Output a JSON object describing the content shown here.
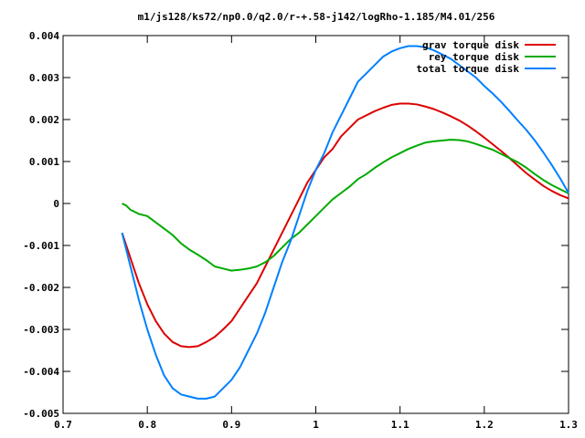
{
  "chart_data": {
    "type": "line",
    "title": "m1/js128/ks72/np0.0/q2.0/r-+.58-j142/logRho-1.185/M4.01/256",
    "xlim": [
      0.7,
      1.3
    ],
    "ylim": [
      -0.005,
      0.004
    ],
    "x_ticks": [
      "0.7",
      "0.8",
      "0.9",
      "1",
      "1.1",
      "1.2",
      "1.3"
    ],
    "y_ticks": [
      "0.004",
      "0.003",
      "0.002",
      "0.001",
      "0",
      "-0.001",
      "-0.002",
      "-0.003",
      "-0.004",
      "-0.005"
    ],
    "grid": false,
    "legend_position": "top-right",
    "series": [
      {
        "name": "grav torque disk",
        "color": "#dd0000",
        "x": [
          0.77,
          0.78,
          0.79,
          0.8,
          0.81,
          0.82,
          0.83,
          0.84,
          0.85,
          0.86,
          0.87,
          0.88,
          0.89,
          0.9,
          0.91,
          0.92,
          0.93,
          0.94,
          0.95,
          0.96,
          0.97,
          0.98,
          0.99,
          1.0,
          1.01,
          1.02,
          1.03,
          1.04,
          1.05,
          1.06,
          1.07,
          1.08,
          1.09,
          1.1,
          1.11,
          1.12,
          1.13,
          1.14,
          1.15,
          1.16,
          1.17,
          1.18,
          1.19,
          1.2,
          1.21,
          1.22,
          1.23,
          1.24,
          1.25,
          1.26,
          1.27,
          1.28,
          1.29,
          1.3
        ],
        "values": [
          -0.0007,
          -0.0013,
          -0.0019,
          -0.0024,
          -0.0028,
          -0.0031,
          -0.0033,
          -0.0034,
          -0.00342,
          -0.0034,
          -0.0033,
          -0.00318,
          -0.003,
          -0.0028,
          -0.0025,
          -0.0022,
          -0.0019,
          -0.0015,
          -0.0011,
          -0.0007,
          -0.0003,
          0.0001,
          0.0005,
          0.0008,
          0.0011,
          0.0013,
          0.0016,
          0.0018,
          0.002,
          0.0021,
          0.0022,
          0.00228,
          0.00235,
          0.00238,
          0.00238,
          0.00236,
          0.00231,
          0.00225,
          0.00217,
          0.00208,
          0.00198,
          0.00186,
          0.00172,
          0.00157,
          0.00141,
          0.00125,
          0.00108,
          0.0009,
          0.00072,
          0.00057,
          0.00042,
          0.0003,
          0.0002,
          0.00012
        ]
      },
      {
        "name": "rey torque disk",
        "color": "#00aa00",
        "x": [
          0.77,
          0.775,
          0.78,
          0.79,
          0.8,
          0.81,
          0.82,
          0.83,
          0.84,
          0.85,
          0.86,
          0.87,
          0.88,
          0.89,
          0.9,
          0.91,
          0.92,
          0.93,
          0.94,
          0.95,
          0.96,
          0.97,
          0.98,
          0.99,
          1.0,
          1.01,
          1.02,
          1.03,
          1.04,
          1.05,
          1.06,
          1.07,
          1.08,
          1.09,
          1.1,
          1.11,
          1.12,
          1.13,
          1.14,
          1.15,
          1.16,
          1.17,
          1.18,
          1.19,
          1.2,
          1.21,
          1.22,
          1.23,
          1.24,
          1.25,
          1.26,
          1.27,
          1.28,
          1.29,
          1.3
        ],
        "values": [
          0.0,
          -5e-05,
          -0.00015,
          -0.00025,
          -0.0003,
          -0.00045,
          -0.0006,
          -0.00075,
          -0.00095,
          -0.0011,
          -0.00122,
          -0.00135,
          -0.0015,
          -0.00155,
          -0.0016,
          -0.00158,
          -0.00155,
          -0.0015,
          -0.0014,
          -0.00125,
          -0.00105,
          -0.00085,
          -0.0007,
          -0.0005,
          -0.0003,
          -0.0001,
          0.0001,
          0.00025,
          0.0004,
          0.00058,
          0.0007,
          0.00085,
          0.00098,
          0.0011,
          0.0012,
          0.0013,
          0.00138,
          0.00145,
          0.00148,
          0.0015,
          0.00152,
          0.00151,
          0.00148,
          0.00142,
          0.00135,
          0.00128,
          0.00118,
          0.00108,
          0.00098,
          0.00085,
          0.0007,
          0.00056,
          0.00044,
          0.00034,
          0.00024
        ]
      },
      {
        "name": "total torque disk",
        "color": "#0080ff",
        "x": [
          0.77,
          0.78,
          0.79,
          0.8,
          0.81,
          0.82,
          0.83,
          0.84,
          0.85,
          0.86,
          0.87,
          0.88,
          0.89,
          0.9,
          0.91,
          0.92,
          0.93,
          0.94,
          0.95,
          0.96,
          0.97,
          0.98,
          0.99,
          1.0,
          1.01,
          1.02,
          1.03,
          1.04,
          1.05,
          1.06,
          1.07,
          1.08,
          1.09,
          1.1,
          1.11,
          1.12,
          1.13,
          1.14,
          1.15,
          1.16,
          1.17,
          1.18,
          1.19,
          1.2,
          1.21,
          1.22,
          1.23,
          1.24,
          1.25,
          1.26,
          1.27,
          1.28,
          1.29,
          1.3
        ],
        "values": [
          -0.0007,
          -0.0015,
          -0.0023,
          -0.003,
          -0.0036,
          -0.0041,
          -0.0044,
          -0.00455,
          -0.0046,
          -0.00465,
          -0.00465,
          -0.0046,
          -0.0044,
          -0.0042,
          -0.0039,
          -0.0035,
          -0.0031,
          -0.0026,
          -0.002,
          -0.0014,
          -0.0009,
          -0.0003,
          0.0003,
          0.0008,
          0.0012,
          0.0017,
          0.0021,
          0.0025,
          0.0029,
          0.0031,
          0.0033,
          0.0035,
          0.00362,
          0.0037,
          0.00375,
          0.00375,
          0.00372,
          0.00365,
          0.00355,
          0.00345,
          0.0033,
          0.00315,
          0.003,
          0.0028,
          0.00262,
          0.00242,
          0.0022,
          0.00197,
          0.00175,
          0.0015,
          0.00122,
          0.00092,
          0.0006,
          0.00025
        ]
      }
    ]
  }
}
